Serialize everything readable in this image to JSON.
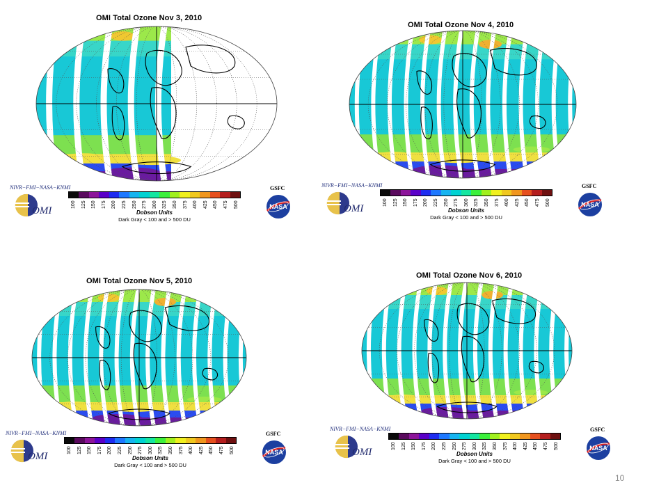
{
  "maps": [
    {
      "title": "OMI Total Ozone Nov  3, 2010",
      "coverage": "partial"
    },
    {
      "title": "OMI Total Ozone Nov  4, 2010",
      "coverage": "full"
    },
    {
      "title": "OMI Total Ozone Nov  5, 2010",
      "coverage": "full"
    },
    {
      "title": "OMI Total Ozone Nov  6, 2010",
      "coverage": "full"
    }
  ],
  "legend": {
    "credit": "NIVR−FMI−NASA−KNMI",
    "agency": "GSFC",
    "omi_logo_text": "OMI",
    "nasa_logo_text": "NASA",
    "units": "Dobson Units",
    "range_note": "Dark Gray < 100 and > 500 DU",
    "ticks": [
      "100",
      "125",
      "150",
      "175",
      "200",
      "225",
      "250",
      "275",
      "300",
      "325",
      "350",
      "375",
      "400",
      "425",
      "450",
      "475",
      "500"
    ],
    "colors": [
      "#0a0a0a",
      "#5a0a5e",
      "#8c149a",
      "#5a00c8",
      "#1e2cf0",
      "#1e78ff",
      "#16b4f0",
      "#00d2d2",
      "#14e6a0",
      "#3cf03c",
      "#a0f01e",
      "#f0f01e",
      "#f0c81e",
      "#f0961e",
      "#e6501e",
      "#b41e1e",
      "#6e1010"
    ]
  },
  "page_number": "10"
}
